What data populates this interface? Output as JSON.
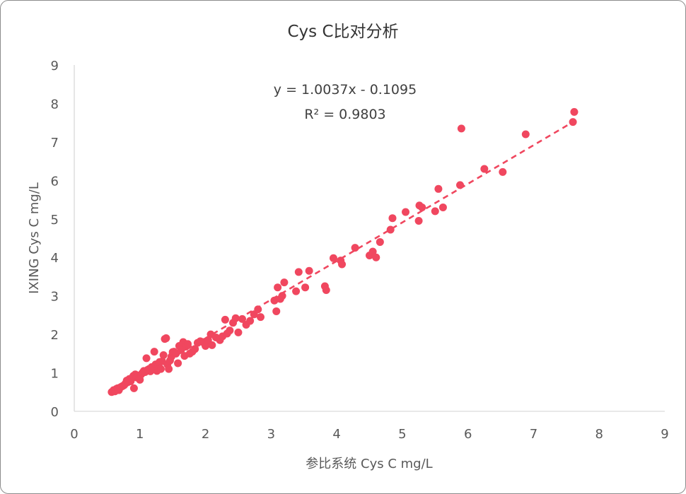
{
  "chart_data": {
    "type": "scatter",
    "title": "Cys C比对分析",
    "xlabel": "参比系统 Cys  C mg/L",
    "ylabel": "IXING Cys C mg/L",
    "xlim": [
      0,
      9
    ],
    "ylim": [
      0,
      9
    ],
    "xticks": [
      "0",
      "1",
      "2",
      "3",
      "4",
      "5",
      "6",
      "7",
      "8",
      "9"
    ],
    "yticks": [
      "0",
      "1",
      "2",
      "3",
      "4",
      "5",
      "6",
      "7",
      "8",
      "9"
    ],
    "grid": false,
    "legend": "none",
    "marker_color": "#f0475f",
    "trendline": {
      "type": "linear",
      "slope": 1.0037,
      "intercept": -0.1095,
      "x_range": [
        0.55,
        7.62
      ],
      "style": "dashed",
      "equation_label": "y = 1.0037x - 0.1095",
      "r2_label": "R² = 0.9803"
    },
    "points": [
      [
        0.57,
        0.5
      ],
      [
        0.6,
        0.55
      ],
      [
        0.62,
        0.52
      ],
      [
        0.64,
        0.58
      ],
      [
        0.66,
        0.6
      ],
      [
        0.68,
        0.55
      ],
      [
        0.7,
        0.62
      ],
      [
        0.72,
        0.64
      ],
      [
        0.74,
        0.66
      ],
      [
        0.76,
        0.68
      ],
      [
        0.78,
        0.72
      ],
      [
        0.8,
        0.8
      ],
      [
        0.82,
        0.76
      ],
      [
        0.84,
        0.84
      ],
      [
        0.86,
        0.78
      ],
      [
        0.88,
        0.86
      ],
      [
        0.9,
        0.92
      ],
      [
        0.91,
        0.6
      ],
      [
        0.93,
        0.96
      ],
      [
        0.95,
        0.88
      ],
      [
        0.97,
        0.9
      ],
      [
        0.99,
        0.86
      ],
      [
        1.0,
        0.82
      ],
      [
        1.02,
        0.96
      ],
      [
        1.04,
        1.0
      ],
      [
        1.06,
        1.05
      ],
      [
        1.08,
        1.02
      ],
      [
        1.1,
        1.38
      ],
      [
        1.12,
        1.08
      ],
      [
        1.14,
        1.1
      ],
      [
        1.16,
        1.04
      ],
      [
        1.18,
        1.15
      ],
      [
        1.2,
        1.12
      ],
      [
        1.22,
        1.55
      ],
      [
        1.24,
        1.22
      ],
      [
        1.26,
        1.05
      ],
      [
        1.28,
        1.18
      ],
      [
        1.3,
        1.28
      ],
      [
        1.32,
        1.1
      ],
      [
        1.34,
        1.3
      ],
      [
        1.36,
        1.46
      ],
      [
        1.38,
        1.88
      ],
      [
        1.4,
        1.9
      ],
      [
        1.42,
        1.22
      ],
      [
        1.44,
        1.1
      ],
      [
        1.46,
        1.32
      ],
      [
        1.48,
        1.42
      ],
      [
        1.5,
        1.54
      ],
      [
        1.52,
        1.55
      ],
      [
        1.55,
        1.5
      ],
      [
        1.58,
        1.25
      ],
      [
        1.6,
        1.7
      ],
      [
        1.63,
        1.6
      ],
      [
        1.66,
        1.8
      ],
      [
        1.68,
        1.44
      ],
      [
        1.7,
        1.68
      ],
      [
        1.73,
        1.75
      ],
      [
        1.76,
        1.5
      ],
      [
        1.8,
        1.55
      ],
      [
        1.84,
        1.62
      ],
      [
        1.88,
        1.78
      ],
      [
        1.92,
        1.82
      ],
      [
        1.96,
        1.8
      ],
      [
        2.0,
        1.7
      ],
      [
        2.04,
        1.85
      ],
      [
        2.08,
        2.0
      ],
      [
        2.1,
        1.72
      ],
      [
        2.16,
        1.92
      ],
      [
        2.22,
        1.85
      ],
      [
        2.26,
        1.95
      ],
      [
        2.3,
        2.38
      ],
      [
        2.33,
        2.02
      ],
      [
        2.37,
        2.1
      ],
      [
        2.42,
        2.3
      ],
      [
        2.46,
        2.42
      ],
      [
        2.5,
        2.05
      ],
      [
        2.56,
        2.4
      ],
      [
        2.62,
        2.25
      ],
      [
        2.68,
        2.35
      ],
      [
        2.74,
        2.52
      ],
      [
        2.8,
        2.65
      ],
      [
        2.84,
        2.45
      ],
      [
        3.05,
        2.88
      ],
      [
        3.08,
        2.6
      ],
      [
        3.1,
        3.22
      ],
      [
        3.14,
        2.92
      ],
      [
        3.17,
        3.0
      ],
      [
        3.2,
        3.35
      ],
      [
        3.38,
        3.12
      ],
      [
        3.42,
        3.62
      ],
      [
        3.52,
        3.22
      ],
      [
        3.58,
        3.65
      ],
      [
        3.82,
        3.25
      ],
      [
        3.84,
        3.15
      ],
      [
        3.95,
        3.98
      ],
      [
        4.06,
        3.92
      ],
      [
        4.08,
        3.82
      ],
      [
        4.28,
        4.25
      ],
      [
        4.5,
        4.05
      ],
      [
        4.55,
        4.15
      ],
      [
        4.6,
        4.0
      ],
      [
        4.66,
        4.4
      ],
      [
        4.82,
        4.72
      ],
      [
        4.85,
        5.02
      ],
      [
        5.05,
        5.18
      ],
      [
        5.25,
        4.95
      ],
      [
        5.26,
        5.35
      ],
      [
        5.3,
        5.3
      ],
      [
        5.5,
        5.2
      ],
      [
        5.55,
        5.78
      ],
      [
        5.62,
        5.3
      ],
      [
        5.88,
        5.88
      ],
      [
        5.9,
        7.35
      ],
      [
        6.25,
        6.3
      ],
      [
        6.53,
        6.22
      ],
      [
        6.88,
        7.2
      ],
      [
        7.6,
        7.52
      ],
      [
        7.62,
        7.78
      ]
    ]
  }
}
